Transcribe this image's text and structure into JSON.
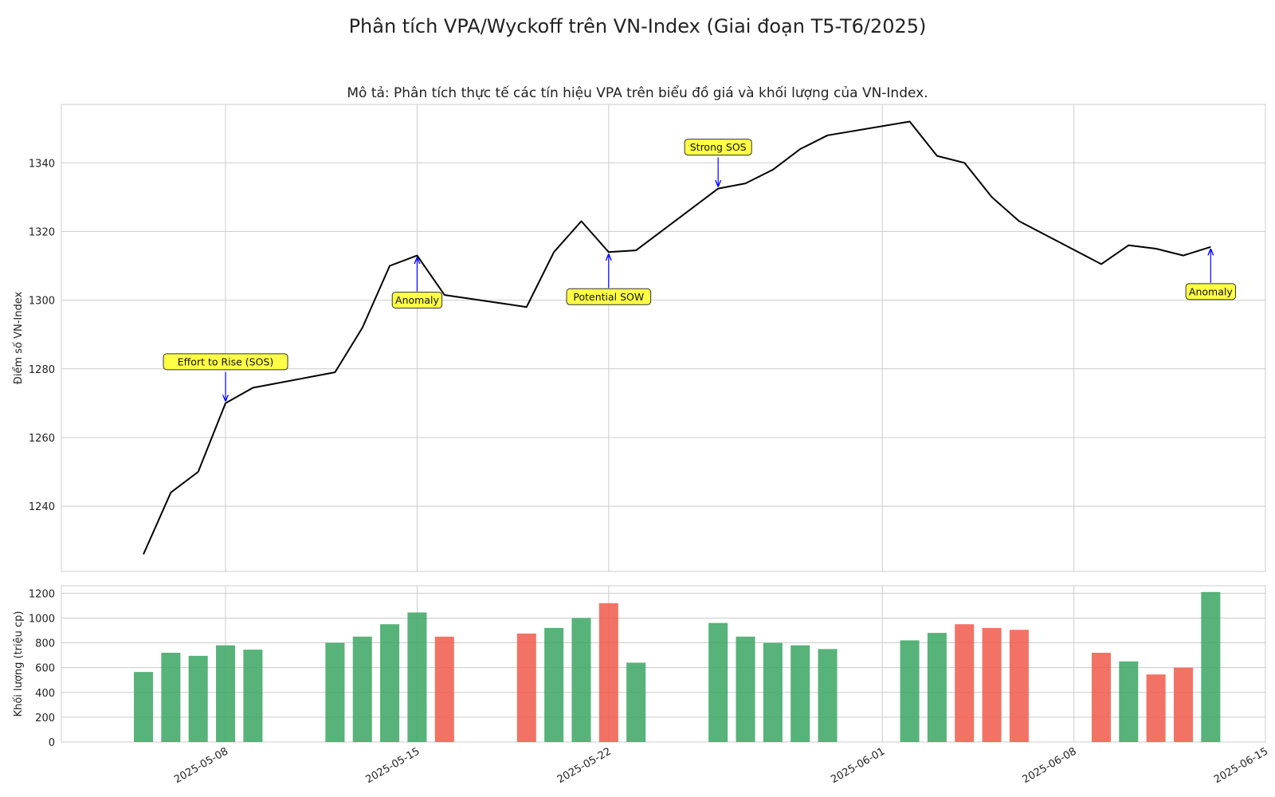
{
  "figure": {
    "title": "Phân tích VPA/Wyckoff trên VN-Index (Giai đoạn T5-T6/2025)",
    "subtitle": "Mô tả: Phân tích thực tế các tín hiệu VPA trên biểu đồ giá và khối lượng của VN-Index."
  },
  "colors": {
    "price_line": "#000000",
    "volume_up": "#3aa661",
    "volume_down": "#f05a4a",
    "annotation_box": "#ffff44",
    "annotation_arrow": "#0000ff",
    "grid": "#cccccc"
  },
  "chart_data": [
    {
      "type": "line",
      "name": "price",
      "ylabel": "Điểm số VN-Index",
      "ylim": [
        1221,
        1357
      ],
      "yticks": [
        1240,
        1260,
        1280,
        1300,
        1320,
        1340
      ],
      "grid": true,
      "x": [
        "2025-05-05",
        "2025-05-06",
        "2025-05-07",
        "2025-05-08",
        "2025-05-09",
        "2025-05-12",
        "2025-05-13",
        "2025-05-14",
        "2025-05-15",
        "2025-05-16",
        "2025-05-19",
        "2025-05-20",
        "2025-05-21",
        "2025-05-22",
        "2025-05-23",
        "2025-05-26",
        "2025-05-27",
        "2025-05-28",
        "2025-05-29",
        "2025-05-30",
        "2025-06-02",
        "2025-06-03",
        "2025-06-04",
        "2025-06-05",
        "2025-06-06",
        "2025-06-09",
        "2025-06-10",
        "2025-06-11",
        "2025-06-12",
        "2025-06-13"
      ],
      "y": [
        1226,
        1244,
        1250,
        1270,
        1274.5,
        1279,
        1292,
        1310,
        1313,
        1301.5,
        1298,
        1314,
        1323,
        1314,
        1314.5,
        1332.5,
        1334,
        1338,
        1344,
        1348,
        1352,
        1342,
        1340,
        1330,
        1323,
        1310.5,
        1316,
        1315,
        1313,
        1315.5
      ],
      "annotations": [
        {
          "label": "Effort to Rise (SOS)",
          "x": "2025-05-08",
          "y": 1270,
          "position": "above"
        },
        {
          "label": "Anomaly",
          "x": "2025-05-15",
          "y": 1313,
          "position": "below"
        },
        {
          "label": "Potential SOW",
          "x": "2025-05-22",
          "y": 1314,
          "position": "below"
        },
        {
          "label": "Strong SOS",
          "x": "2025-05-26",
          "y": 1332.5,
          "position": "above"
        },
        {
          "label": "Anomaly",
          "x": "2025-06-13",
          "y": 1315.5,
          "position": "below"
        }
      ]
    },
    {
      "type": "bar",
      "name": "volume",
      "ylabel": "Khối lượng (triệu cp)",
      "ylim": [
        0,
        1260
      ],
      "yticks": [
        0,
        200,
        400,
        600,
        800,
        1000,
        1200
      ],
      "grid": true,
      "x": [
        "2025-05-05",
        "2025-05-06",
        "2025-05-07",
        "2025-05-08",
        "2025-05-09",
        "2025-05-12",
        "2025-05-13",
        "2025-05-14",
        "2025-05-15",
        "2025-05-16",
        "2025-05-19",
        "2025-05-20",
        "2025-05-21",
        "2025-05-22",
        "2025-05-23",
        "2025-05-26",
        "2025-05-27",
        "2025-05-28",
        "2025-05-29",
        "2025-05-30",
        "2025-06-02",
        "2025-06-03",
        "2025-06-04",
        "2025-06-05",
        "2025-06-06",
        "2025-06-09",
        "2025-06-10",
        "2025-06-11",
        "2025-06-12",
        "2025-06-13"
      ],
      "values": [
        565,
        720,
        695,
        780,
        745,
        800,
        850,
        950,
        1045,
        850,
        875,
        920,
        1000,
        1120,
        640,
        960,
        850,
        800,
        780,
        750,
        820,
        880,
        950,
        920,
        905,
        720,
        650,
        545,
        600,
        1210
      ],
      "direction": [
        "up",
        "up",
        "up",
        "up",
        "up",
        "up",
        "up",
        "up",
        "up",
        "down",
        "down",
        "up",
        "up",
        "down",
        "up",
        "up",
        "up",
        "up",
        "up",
        "up",
        "up",
        "up",
        "down",
        "down",
        "down",
        "down",
        "up",
        "down",
        "down",
        "up"
      ]
    }
  ],
  "x_axis": {
    "xlim": [
      "2025-05-02",
      "2025-06-15"
    ],
    "ticks": [
      "2025-05-08",
      "2025-05-15",
      "2025-05-22",
      "2025-06-01",
      "2025-06-08",
      "2025-06-15"
    ]
  }
}
